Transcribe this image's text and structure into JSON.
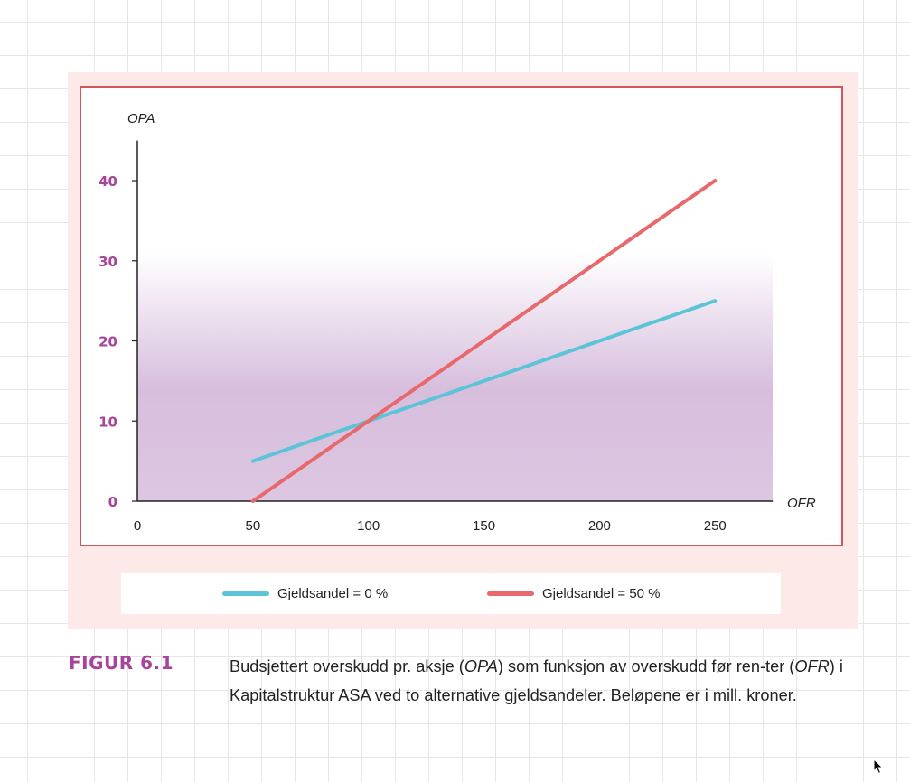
{
  "chart_data": {
    "type": "line",
    "xlabel": "OFR",
    "ylabel": "OPA",
    "xlim": [
      0,
      275
    ],
    "ylim": [
      0,
      45
    ],
    "x_ticks": [
      0,
      50,
      100,
      150,
      200,
      250
    ],
    "y_ticks": [
      0,
      10,
      20,
      30,
      40
    ],
    "grid": false,
    "legend": "bottom",
    "series": [
      {
        "name": "Gjeldsandel = 0 %",
        "color": "#5bc4d6",
        "x": [
          50,
          250
        ],
        "y": [
          5,
          25
        ]
      },
      {
        "name": "Gjeldsandel = 50 %",
        "color": "#e8686b",
        "x": [
          50,
          250
        ],
        "y": [
          0,
          40
        ]
      }
    ],
    "y_tick_color": "#a8439b",
    "background_gradient": [
      "#ffffff",
      "#d2b4d8"
    ]
  },
  "caption": {
    "label": "FIGUR 6.1",
    "parts": [
      "Budsjettert overskudd pr. aksje (",
      "OPA",
      ") som funksjon av overskudd før ren-ter (",
      "OFR",
      ") i Kapitalstruktur ASA ved to alternative gjeldsandeler. Beløpene er i mill. kroner."
    ]
  },
  "colors": {
    "panel": "#fdeae8",
    "frame": "#d0585a",
    "caption_label": "#a8439b"
  }
}
